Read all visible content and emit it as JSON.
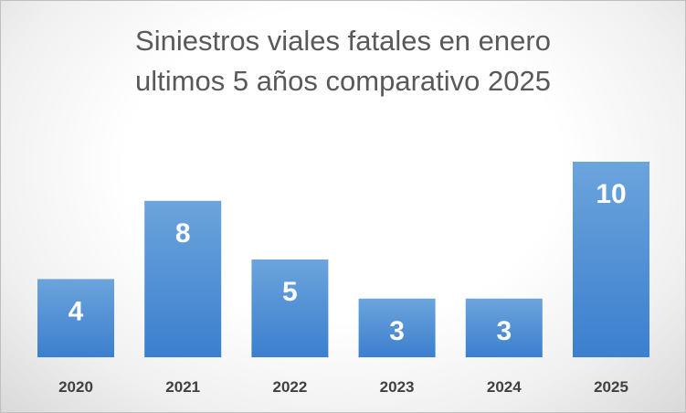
{
  "chart_data": {
    "type": "bar",
    "title_lines": [
      "Siniestros viales fatales en enero",
      "ultimos 5 años comparativo 2025"
    ],
    "categories": [
      "2020",
      "2021",
      "2022",
      "2023",
      "2024",
      "2025"
    ],
    "values": [
      4,
      8,
      5,
      3,
      3,
      10
    ],
    "xlabel": "",
    "ylabel": "",
    "ylim": [
      0,
      10
    ],
    "grid": false,
    "legend": "none",
    "data_labels": true,
    "bar_color_top": "#6ca4dc",
    "bar_color_bottom": "#3b7fce",
    "label_color": "#ffffff",
    "tick_color": "#404040",
    "title_color": "#595959"
  }
}
